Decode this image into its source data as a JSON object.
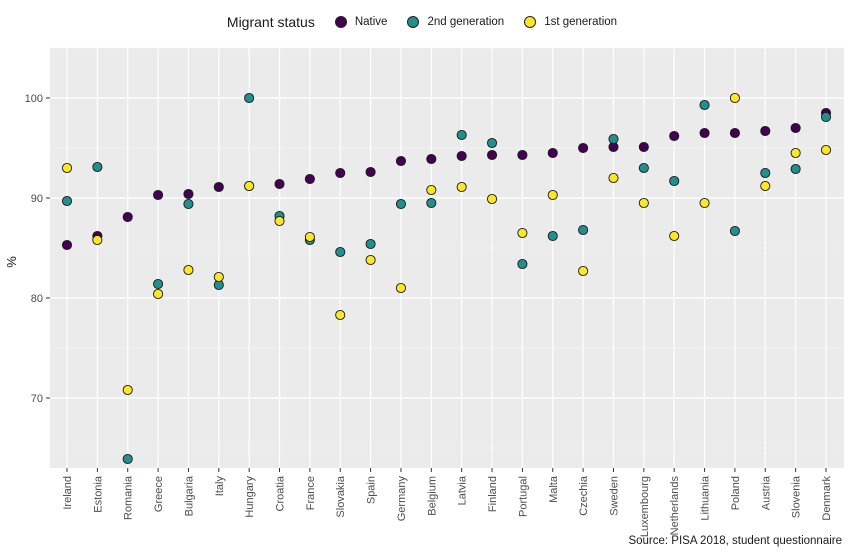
{
  "chart_data": {
    "type": "scatter",
    "title": "",
    "legend_title": "Migrant status",
    "legend_position": "top",
    "ylabel": "%",
    "xlabel": "",
    "ylim": [
      63,
      105
    ],
    "yticks": [
      70,
      80,
      90,
      100
    ],
    "grid": true,
    "categories": [
      "Ireland",
      "Estonia",
      "Romania",
      "Greece",
      "Bulgaria",
      "Italy",
      "Hungary",
      "Croatia",
      "France",
      "Slovakia",
      "Spain",
      "Germany",
      "Belgium",
      "Latvia",
      "Finland",
      "Portugal",
      "Malta",
      "Czechia",
      "Sweden",
      "Luxembourg",
      "Netherlands",
      "Lithuania",
      "Poland",
      "Austria",
      "Slovenia",
      "Denmark"
    ],
    "series": [
      {
        "name": "Native",
        "color": "#440154",
        "values": [
          85.3,
          86.2,
          88.1,
          90.3,
          90.4,
          91.1,
          91.2,
          91.4,
          91.9,
          92.5,
          92.6,
          93.7,
          93.9,
          94.2,
          94.3,
          94.3,
          94.5,
          95.0,
          95.1,
          95.1,
          96.2,
          96.5,
          96.5,
          96.7,
          97.0,
          98.5
        ]
      },
      {
        "name": "2nd generation",
        "color": "#21908C",
        "values": [
          89.7,
          93.1,
          63.9,
          81.4,
          89.4,
          81.3,
          100.0,
          88.2,
          85.8,
          84.6,
          85.4,
          89.4,
          89.5,
          96.3,
          95.5,
          83.4,
          86.2,
          86.8,
          95.9,
          93.0,
          91.7,
          99.3,
          86.7,
          92.5,
          92.9,
          98.1
        ]
      },
      {
        "name": "1st generation",
        "color": "#FDE725",
        "values": [
          93.0,
          85.8,
          70.8,
          80.4,
          82.8,
          82.1,
          91.2,
          87.7,
          86.1,
          78.3,
          83.8,
          81.0,
          90.8,
          91.1,
          89.9,
          86.5,
          90.3,
          82.7,
          92.0,
          89.5,
          86.2,
          89.5,
          100.0,
          91.2,
          94.5,
          94.8
        ]
      }
    ]
  },
  "source_text": "Source: PISA 2018, student questionnaire"
}
